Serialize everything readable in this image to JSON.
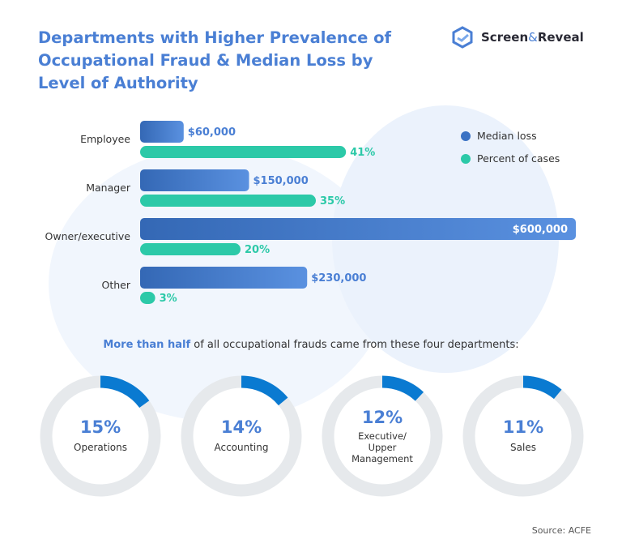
{
  "title": "Departments with Higher Prevalence of Occupational Fraud & Median Loss by Level of Authority",
  "logo": {
    "text_a": "Screen",
    "amp": "&",
    "text_b": "Reveal"
  },
  "colors": {
    "median": "#3a72c4",
    "percent": "#2cc9a8",
    "ring_track": "#e6e9ec",
    "ring_fill": "#0a7ad1",
    "title": "#4a7fd4"
  },
  "chart_data": [
    {
      "type": "bar",
      "orientation": "horizontal",
      "categories": [
        "Employee",
        "Manager",
        "Owner/executive",
        "Other"
      ],
      "series": [
        {
          "name": "Median loss",
          "values": [
            60000,
            150000,
            600000,
            230000
          ],
          "labels": [
            "$60,000",
            "$150,000",
            "$600,000",
            "$230,000"
          ]
        },
        {
          "name": "Percent of cases",
          "values": [
            41,
            35,
            20,
            3
          ],
          "labels": [
            "41%",
            "35%",
            "20%",
            "3%"
          ]
        }
      ],
      "legend": "top-right",
      "grid": false
    },
    {
      "type": "pie",
      "style": "donut",
      "categories": [
        "Operations",
        "Accounting",
        "Executive/ Upper Management",
        "Sales"
      ],
      "values": [
        15,
        14,
        12,
        11
      ],
      "labels": [
        "15%",
        "14%",
        "12%",
        "11%"
      ]
    }
  ],
  "headline": {
    "highlight": "More than half",
    "rest": " of all occupational frauds came from these four departments:"
  },
  "source": "Source: ACFE"
}
